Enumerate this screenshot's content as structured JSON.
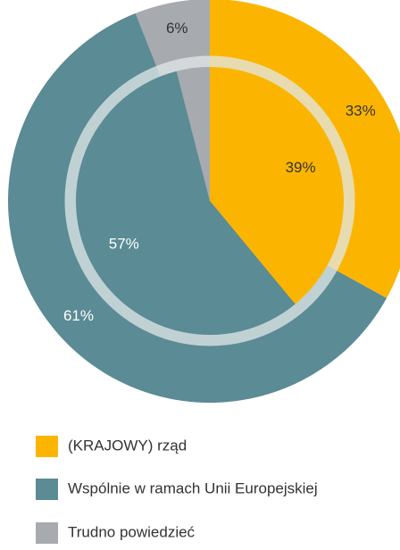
{
  "chart_data": {
    "type": "pie",
    "categories": [
      "(KRAJOWY) rząd",
      "Wspólnie w ramach Unii Europejskiej",
      "Trudno powiedzieć"
    ],
    "colors": [
      "#fbb500",
      "#5b8b94",
      "#a7aaae"
    ],
    "series": [
      {
        "values": [
          33,
          61,
          6
        ],
        "value_labels": [
          "33%",
          "61%",
          "6%"
        ]
      },
      {
        "values": [
          39,
          57,
          4
        ],
        "value_labels": [
          "39%",
          "57%",
          null
        ]
      }
    ]
  }
}
